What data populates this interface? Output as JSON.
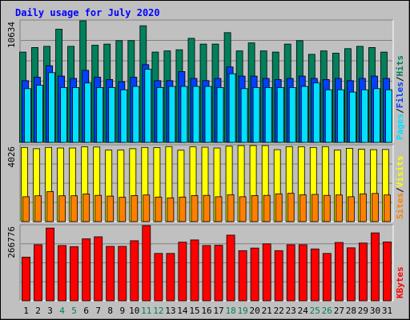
{
  "title": "Daily usage for July 2020",
  "colors": {
    "background": "#c0c0c0",
    "plot": "#c0c0c0",
    "title": "#0000ff",
    "hits": "#00805c",
    "files": "#0040ff",
    "pages": "#00e0ff",
    "visits": "#ffff00",
    "sites": "#ff8000",
    "kbytes": "#ff0000",
    "weekend_label": "#00805c",
    "weekday_label": "#000000"
  },
  "chart_data": {
    "type": "bar",
    "title": "Daily usage for July 2020",
    "categories": [
      "1",
      "2",
      "3",
      "4",
      "5",
      "6",
      "7",
      "8",
      "9",
      "10",
      "11",
      "12",
      "13",
      "14",
      "15",
      "16",
      "17",
      "18",
      "19",
      "20",
      "21",
      "22",
      "23",
      "24",
      "25",
      "26",
      "27",
      "28",
      "29",
      "30",
      "31"
    ],
    "weekend_days": [
      "4",
      "5",
      "11",
      "12",
      "18",
      "19",
      "25",
      "26"
    ],
    "panels": [
      {
        "key": "top",
        "ymax_label": "10634",
        "ymax": 10634,
        "legend": [
          {
            "text": "Pages",
            "color": "#00e0ff"
          },
          {
            "text": "/",
            "color": "#000000"
          },
          {
            "text": "Files",
            "color": "#0040ff"
          },
          {
            "text": "/",
            "color": "#000000"
          },
          {
            "text": "Hits",
            "color": "#00805c"
          }
        ],
        "series": [
          {
            "name": "Hits",
            "color": "#00805c",
            "values": [
              7900,
              8300,
              8400,
              9900,
              8400,
              10634,
              8500,
              8600,
              8900,
              8900,
              10200,
              7900,
              8000,
              8100,
              9100,
              8600,
              8600,
              9600,
              8000,
              8700,
              8000,
              7900,
              8600,
              8900,
              7700,
              8000,
              7800,
              8200,
              8400,
              8300,
              7900
            ]
          },
          {
            "name": "Files",
            "color": "#0040ff",
            "values": [
              5400,
              5700,
              6700,
              5800,
              5600,
              6300,
              5700,
              5500,
              5300,
              5700,
              6800,
              5400,
              5400,
              6200,
              5600,
              5400,
              5600,
              6600,
              5800,
              5800,
              5600,
              5500,
              5600,
              5800,
              5600,
              5500,
              5600,
              5400,
              5600,
              5800,
              5600
            ]
          },
          {
            "name": "Pages",
            "color": "#00e0ff",
            "values": [
              4700,
              5000,
              6100,
              4800,
              4800,
              5200,
              4800,
              4800,
              4600,
              4900,
              6400,
              4800,
              4900,
              4900,
              4900,
              4900,
              4800,
              6000,
              4700,
              4800,
              4800,
              4800,
              4800,
              4900,
              5200,
              4600,
              4600,
              4400,
              4600,
              4700,
              4600
            ]
          }
        ]
      },
      {
        "key": "middle",
        "ymax_label": "4026",
        "ymax": 4026,
        "legend": [
          {
            "text": "Sites",
            "color": "#ff8000"
          },
          {
            "text": "/",
            "color": "#000000"
          },
          {
            "text": "Visits",
            "color": "#ffff00"
          }
        ],
        "series": [
          {
            "name": "Visits",
            "color": "#ffff00",
            "values": [
              3930,
              3860,
              3930,
              3900,
              3900,
              3960,
              3950,
              3790,
              3790,
              3860,
              3930,
              3920,
              3970,
              3780,
              3960,
              3940,
              3900,
              3990,
              4026,
              4026,
              4026,
              3810,
              3970,
              3960,
              3930,
              3970,
              3790,
              3880,
              3830,
              3810,
              3820
            ]
          },
          {
            "name": "Sites",
            "color": "#ff8000",
            "values": [
              1320,
              1370,
              1590,
              1370,
              1370,
              1460,
              1390,
              1350,
              1290,
              1380,
              1410,
              1300,
              1260,
              1300,
              1380,
              1390,
              1320,
              1420,
              1320,
              1380,
              1390,
              1470,
              1500,
              1420,
              1440,
              1390,
              1410,
              1320,
              1470,
              1490,
              1410
            ]
          }
        ]
      },
      {
        "key": "bottom",
        "ymax_label": "266776",
        "ymax": 266776,
        "legend": [
          {
            "text": "KBytes",
            "color": "#ff0000"
          }
        ],
        "series": [
          {
            "name": "KBytes",
            "color": "#ff0000",
            "values": [
              155000,
              199000,
              258000,
              196000,
              192000,
              220000,
              227000,
              193000,
              193000,
              213000,
              266776,
              168000,
              168000,
              208000,
              216000,
              196000,
              197000,
              233000,
              178000,
              187000,
              202000,
              178000,
              199000,
              199000,
              184000,
              168000,
              207000,
              188000,
              205000,
              241000,
              209000
            ]
          }
        ]
      }
    ]
  }
}
